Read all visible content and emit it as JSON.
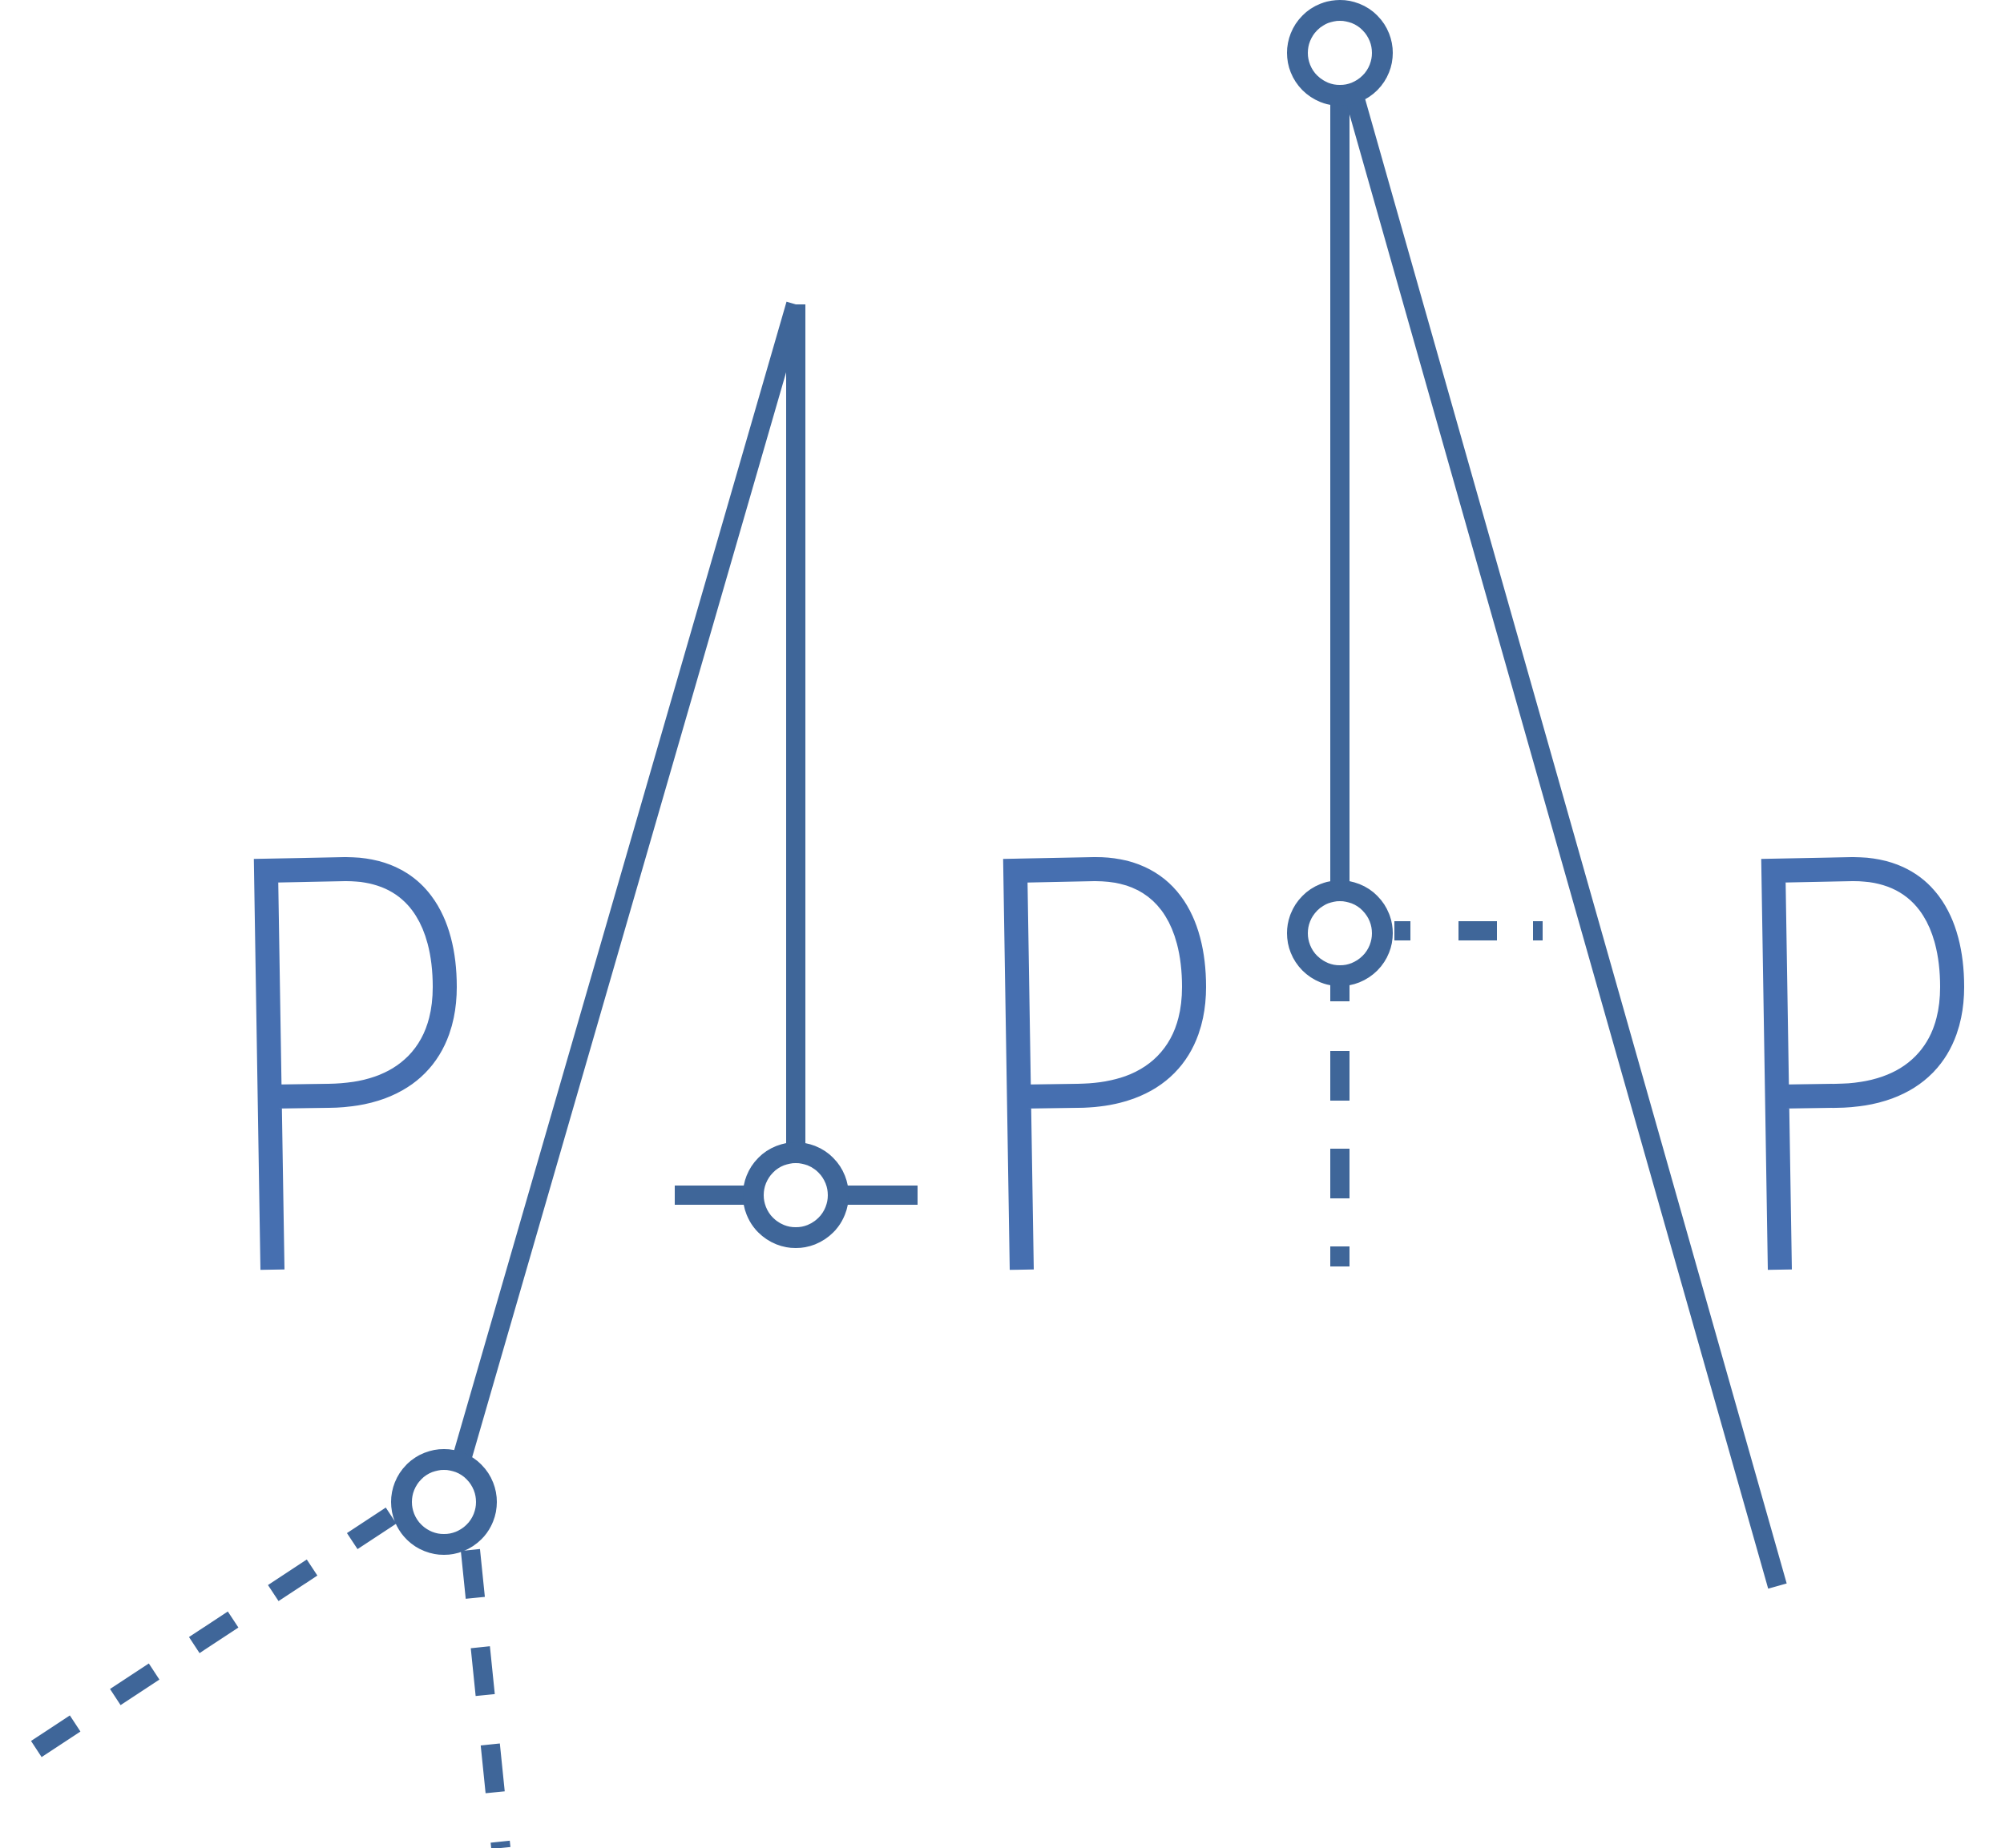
{
  "colors": {
    "line": "#3F6699",
    "letter": "#466FB0",
    "background": "#FFFFFF"
  },
  "letters": [
    "P",
    "P",
    "P"
  ]
}
